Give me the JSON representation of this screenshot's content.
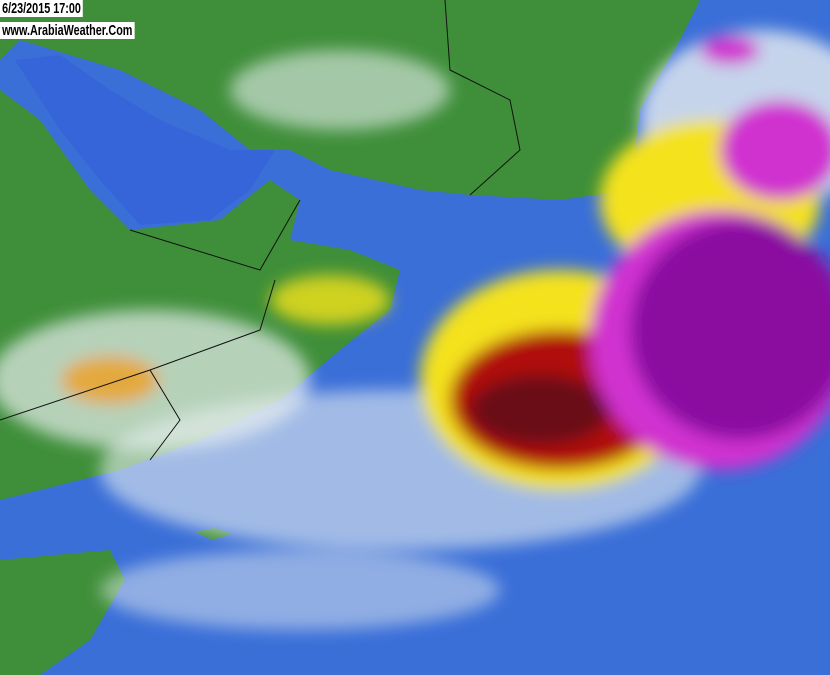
{
  "overlay": {
    "timestamp": "6/23/2015 17:00",
    "website": "www.ArabiaWeather.Com"
  },
  "imagery": {
    "type": "infrared satellite image",
    "colors": {
      "land": "#3f8f3a",
      "sea": "#3a6fd8",
      "thin_cloud": "#e8eef0",
      "cloud_yellow": "#f4e21a",
      "cloud_orange": "#f0a020",
      "cloud_red": "#b01010",
      "cloud_darkred": "#6a0a14",
      "cloud_magenta": "#d030d0",
      "cloud_purple": "#8a10a0"
    }
  }
}
